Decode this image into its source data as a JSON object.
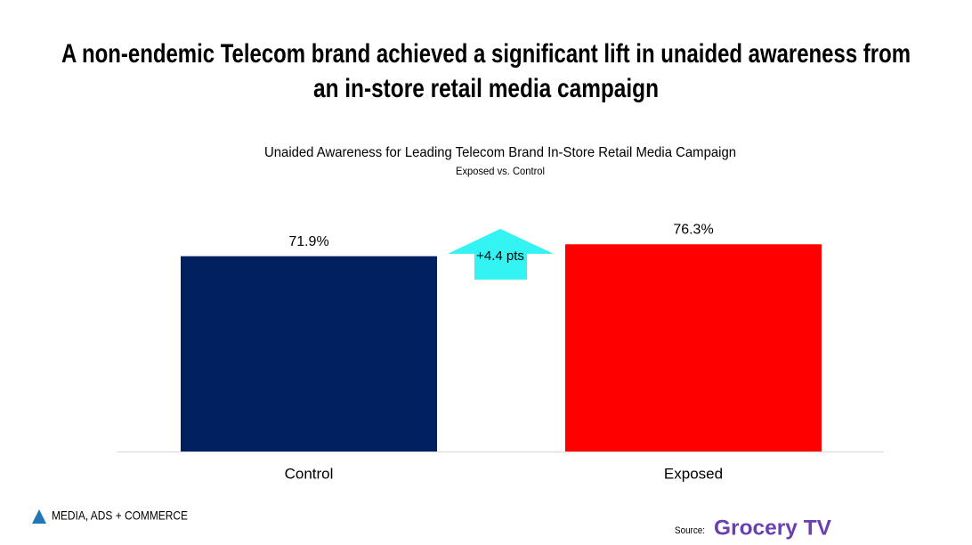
{
  "header": {
    "title_lines": [
      "A non-endemic Telecom brand achieved a significant lift in unaided awareness from",
      "an in-store retail media campaign"
    ]
  },
  "chart_data": {
    "type": "bar",
    "title": "Unaided Awareness for Leading Telecom Brand In-Store Retail Media Campaign",
    "subtitle": "Exposed vs. Control",
    "categories": [
      "Control",
      "Exposed"
    ],
    "values": [
      71.9,
      76.3
    ],
    "value_labels": [
      "71.9%",
      "76.3%"
    ],
    "colors": [
      "#002060",
      "#ff0000"
    ],
    "ylim": [
      0,
      100
    ],
    "annotation": "+4.4 pts",
    "annotation_color": "#33f3f3"
  },
  "footer": {
    "logo": "MEDIA, ADS + COMMERCE",
    "source_label": "Source:",
    "source_brand": "Grocery TV"
  }
}
